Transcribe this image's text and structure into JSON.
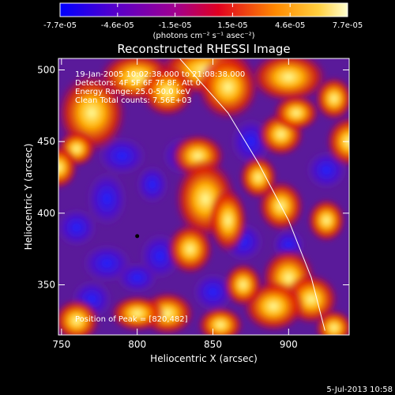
{
  "chart_data": {
    "type": "heatmap",
    "title": "Reconstructed RHESSI Image",
    "xlabel": "Heliocentric X (arcsec)",
    "ylabel": "Heliocentric Y (arcsec)",
    "xlim": [
      748,
      940
    ],
    "ylim": [
      315,
      508
    ],
    "xticks": [
      750,
      800,
      850,
      900
    ],
    "yticks": [
      350,
      400,
      450,
      500
    ],
    "colorbar": {
      "min": -7.7e-05,
      "max": 7.7e-05,
      "ticks": [
        "-7.7e-05",
        "-4.6e-05",
        "-1.5e-05",
        "1.5e-05",
        "4.6e-05",
        "7.7e-05"
      ],
      "unit_label": "(photons cm⁻² s⁻¹ asec⁻²)",
      "colors": [
        "#0000ff",
        "#8000b0",
        "#c00070",
        "#ff4000",
        "#ffb000",
        "#ffff80"
      ]
    },
    "peak": {
      "x": 820,
      "y": 482
    },
    "annotations": [
      "19-Jan-2005 10:02:38.000 to 21:08:38.000",
      "Detectors: 4F 5F 6F 7F 8F, Att 0",
      "Energy Range: 25.0-50.0 keV",
      "Clean     Total counts: 7.56E+03",
      "Position of Peak = [820,482]"
    ],
    "footer_date": "5-Jul-2013 10:58",
    "limb_curve": [
      [
        828,
        508
      ],
      [
        860,
        470
      ],
      [
        880,
        435
      ],
      [
        900,
        395
      ],
      [
        915,
        355
      ],
      [
        924,
        318
      ]
    ],
    "marker_point": {
      "x": 800,
      "y": 384
    }
  }
}
